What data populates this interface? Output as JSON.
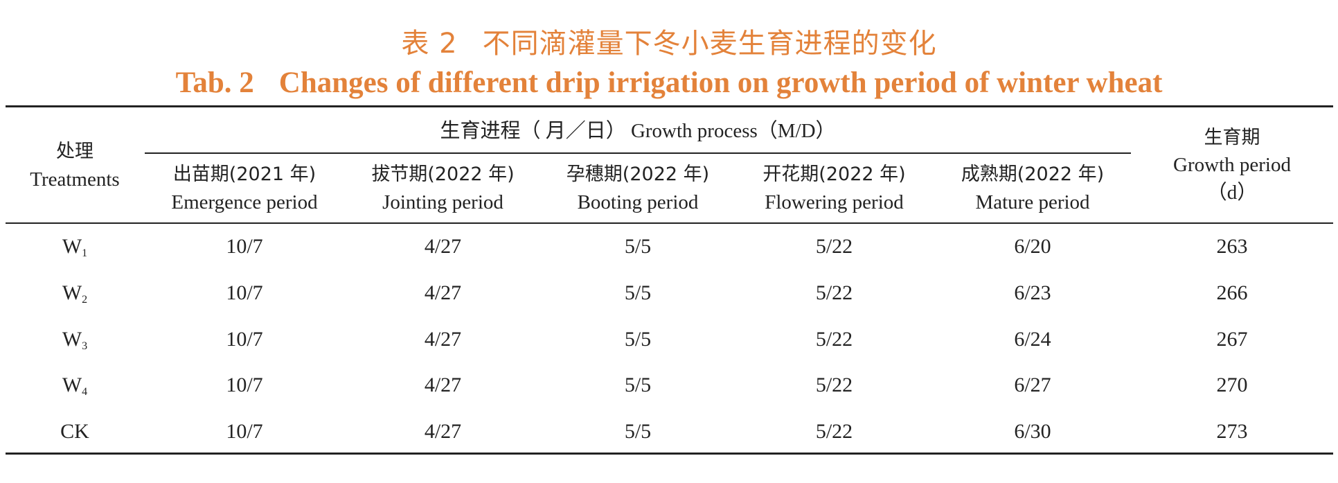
{
  "title": {
    "cn_label": "表 2",
    "cn_text": "不同滴灌量下冬小麦生育进程的变化",
    "en_label": "Tab. 2",
    "en_text": "Changes of different drip irrigation on growth period of winter wheat"
  },
  "header": {
    "treatment_cn": "处理",
    "treatment_en": "Treatments",
    "process_group": "生育进程（ 月／日） Growth process（M/D）",
    "period_cn": "生育期",
    "period_en": "Growth period",
    "period_unit": "（d）",
    "stages": [
      {
        "cn": "出苗期(2021 年)",
        "en": "Emergence period"
      },
      {
        "cn": "拔节期(2022 年)",
        "en": "Jointing period"
      },
      {
        "cn": "孕穗期(2022 年)",
        "en": "Booting period"
      },
      {
        "cn": "开花期(2022 年)",
        "en": "Flowering period"
      },
      {
        "cn": "成熟期(2022 年)",
        "en": "Mature period"
      }
    ]
  },
  "rows": [
    {
      "treatment": "W",
      "sub": "1",
      "values": [
        "10/7",
        "4/27",
        "5/5",
        "5/22",
        "6/20",
        "263"
      ]
    },
    {
      "treatment": "W",
      "sub": "2",
      "values": [
        "10/7",
        "4/27",
        "5/5",
        "5/22",
        "6/23",
        "266"
      ]
    },
    {
      "treatment": "W",
      "sub": "3",
      "values": [
        "10/7",
        "4/27",
        "5/5",
        "5/22",
        "6/24",
        "267"
      ]
    },
    {
      "treatment": "W",
      "sub": "4",
      "values": [
        "10/7",
        "4/27",
        "5/5",
        "5/22",
        "6/27",
        "270"
      ]
    },
    {
      "treatment": "CK",
      "sub": "",
      "values": [
        "10/7",
        "4/27",
        "5/5",
        "5/22",
        "6/30",
        "273"
      ]
    }
  ],
  "colors": {
    "title": "#e3823a",
    "text": "#222222"
  }
}
